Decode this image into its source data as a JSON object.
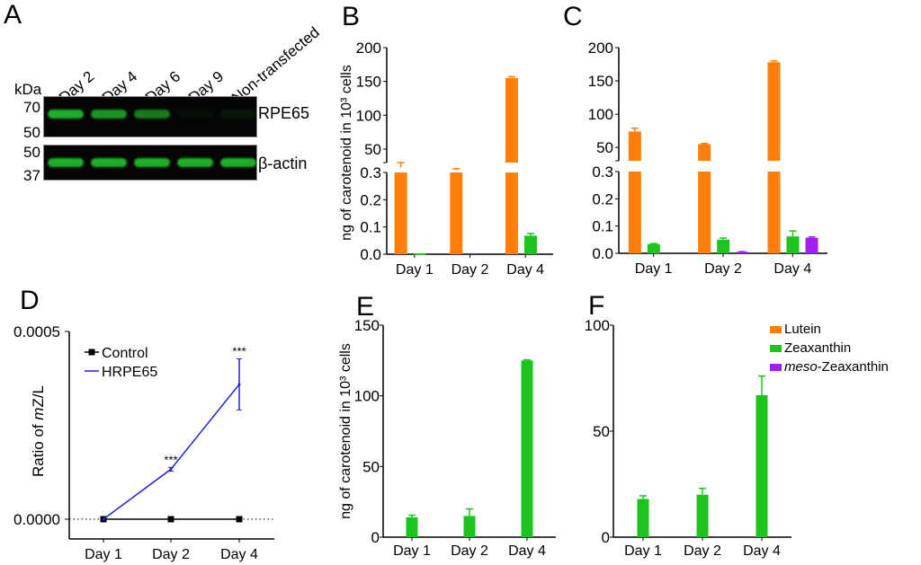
{
  "panels": {
    "A": {
      "letter": "A"
    },
    "B": {
      "letter": "B"
    },
    "C": {
      "letter": "C"
    },
    "D": {
      "letter": "D"
    },
    "E": {
      "letter": "E"
    },
    "F": {
      "letter": "F"
    }
  },
  "western_blot": {
    "kda_label": "kDa",
    "lanes": [
      "Day 2",
      "Day 4",
      "Day 6",
      "Day 9",
      "Non-transfected"
    ],
    "rpe65": {
      "label": "RPE65",
      "markers": [
        "70",
        "50"
      ],
      "intensity": [
        1.0,
        0.85,
        0.7,
        0.05,
        0.1
      ]
    },
    "actin": {
      "label": "β-actin",
      "markers": [
        "50",
        "37"
      ],
      "intensity": [
        1.0,
        1.0,
        1.0,
        1.0,
        1.0
      ]
    },
    "band_color": "#1fae2a"
  },
  "colors": {
    "lutein": "#ff7f0e",
    "zeaxanthin": "#1ec41e",
    "meso": "#a020f0",
    "hrpe65": "#2222dd",
    "control": "#000000"
  },
  "legend": {
    "items": [
      {
        "name": "Lutein",
        "prefix": "",
        "key": "lutein"
      },
      {
        "name": "-Zeaxanthin",
        "prefix": "meso",
        "key": "meso"
      },
      {
        "name": "Zeaxanthin",
        "prefix": "",
        "key": "zeaxanthin"
      }
    ]
  },
  "chart_data": [
    {
      "id": "B",
      "type": "bar",
      "ylabel": "ng of carotenoid in 10³ cells",
      "categories": [
        "Day 1",
        "Day 2",
        "Day 4"
      ],
      "broken_axis": {
        "lower": [
          0,
          0.3
        ],
        "upper": [
          30,
          200
        ]
      },
      "lower_ticks": [
        "0.0",
        "0.1",
        "0.2",
        "0.3"
      ],
      "upper_ticks": [
        "50",
        "100",
        "150",
        "200"
      ],
      "series": [
        {
          "name": "Lutein",
          "values": [
            23,
            19,
            155
          ],
          "errors": [
            7,
            2,
            2
          ]
        },
        {
          "name": "Zeaxanthin",
          "values": [
            0.003,
            0,
            0.068
          ],
          "errors": [
            0,
            0,
            0.008
          ]
        },
        {
          "name": "meso-Zeaxanthin",
          "values": [
            0,
            0,
            0
          ],
          "errors": [
            0,
            0,
            0
          ]
        }
      ]
    },
    {
      "id": "C",
      "type": "bar",
      "ylabel": "",
      "categories": [
        "Day 1",
        "Day 2",
        "Day 4"
      ],
      "broken_axis": {
        "lower": [
          0,
          0.3
        ],
        "upper": [
          30,
          200
        ]
      },
      "lower_ticks": [
        "0.0",
        "0.1",
        "0.2",
        "0.3"
      ],
      "upper_ticks": [
        "50",
        "100",
        "150",
        "200"
      ],
      "series": [
        {
          "name": "Lutein",
          "values": [
            74,
            55,
            178
          ],
          "errors": [
            5,
            1,
            2
          ]
        },
        {
          "name": "Zeaxanthin",
          "values": [
            0.034,
            0.05,
            0.062
          ],
          "errors": [
            0.002,
            0.006,
            0.02
          ]
        },
        {
          "name": "meso-Zeaxanthin",
          "values": [
            0,
            0.005,
            0.057
          ],
          "errors": [
            0,
            0.001,
            0.003
          ]
        }
      ]
    },
    {
      "id": "D",
      "type": "line",
      "ylabel": "Ratio of mZ/L",
      "ylabel_prefix": "Ratio of ",
      "ylabel_italic": "m",
      "ylabel_suffix": "Z/L",
      "categories": [
        "Day 1",
        "Day 2",
        "Day 4"
      ],
      "ylim": [
        0,
        0.0005
      ],
      "yticks": [
        "0.0000",
        "0.0005"
      ],
      "series": [
        {
          "name": "Control",
          "values": [
            0,
            0,
            0
          ],
          "errors": [
            0,
            0,
            0
          ]
        },
        {
          "name": "HRPE65",
          "values": [
            0,
            0.000133,
            0.000359
          ],
          "errors": [
            0,
            5e-06,
            6.8e-05
          ]
        }
      ],
      "annotations": [
        {
          "category": "Day 2",
          "text": "***"
        },
        {
          "category": "Day 4",
          "text": "***"
        }
      ]
    },
    {
      "id": "E",
      "type": "bar",
      "ylabel": "ng of carotenoid in 10³ cells",
      "categories": [
        "Day 1",
        "Day 2",
        "Day 4"
      ],
      "ylim": [
        0,
        150
      ],
      "yticks": [
        "0",
        "50",
        "100",
        "150"
      ],
      "series": [
        {
          "name": "Zeaxanthin",
          "values": [
            14,
            15,
            125
          ],
          "errors": [
            1.5,
            5,
            0.5
          ]
        }
      ]
    },
    {
      "id": "F",
      "type": "bar",
      "ylabel": "",
      "categories": [
        "Day 1",
        "Day 2",
        "Day 4"
      ],
      "ylim": [
        0,
        100
      ],
      "yticks": [
        "0",
        "50",
        "100"
      ],
      "series": [
        {
          "name": "Zeaxanthin",
          "values": [
            18,
            20,
            67
          ],
          "errors": [
            1.5,
            3,
            9
          ]
        }
      ]
    }
  ]
}
